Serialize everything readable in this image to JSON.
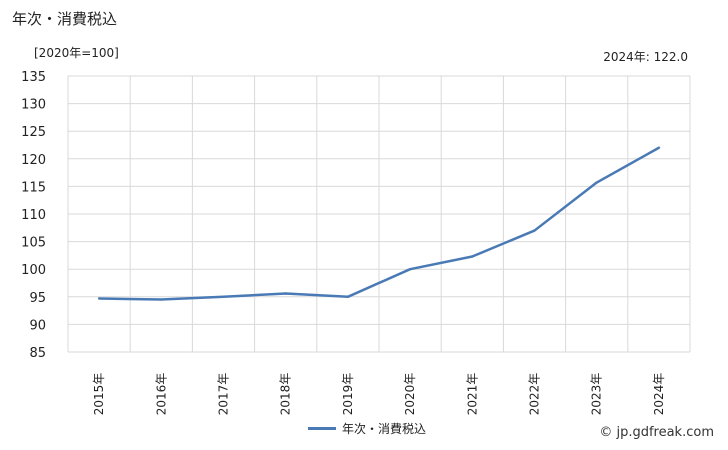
{
  "title": "年次・消費税込",
  "unit_label": "[2020年=100]",
  "latest_value": "2024年: 122.0",
  "credit": "© jp.gdfreak.com",
  "colors": {
    "series": "#4a7ab5",
    "grid": "#d9d9d9",
    "axis": "#888888"
  },
  "chart_data": {
    "type": "line",
    "title": "年次・消費税込",
    "xlabel": "",
    "ylabel": "",
    "categories": [
      "2015年",
      "2016年",
      "2017年",
      "2018年",
      "2019年",
      "2020年",
      "2021年",
      "2022年",
      "2023年",
      "2024年"
    ],
    "series": [
      {
        "name": "年次・消費税込",
        "values": [
          94.7,
          94.5,
          95.0,
          95.6,
          95.0,
          100.0,
          102.3,
          107.0,
          115.7,
          122.0
        ]
      }
    ],
    "ylim": [
      85,
      135
    ],
    "yticks": [
      85,
      90,
      95,
      100,
      105,
      110,
      115,
      120,
      125,
      130,
      135
    ],
    "grid": true,
    "legend": "bottom-center"
  }
}
